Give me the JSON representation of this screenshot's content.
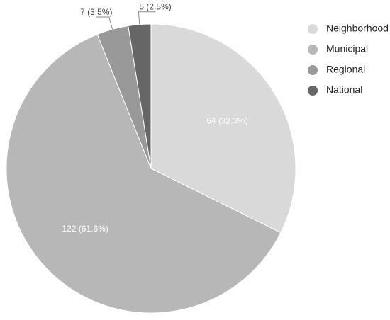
{
  "chart_data": {
    "type": "pie",
    "title": "",
    "legend_position": "right",
    "start_angle": "top, clockwise",
    "slices": [
      {
        "label": "Neighborhood",
        "value": 64,
        "percent": "32.3%",
        "data_label": "64 (32.3%)",
        "color": "#d9d9d9",
        "label_placement": "inside",
        "label_color": "#ffffff"
      },
      {
        "label": "Municipal",
        "value": 122,
        "percent": "61.6%",
        "data_label": "122 (61.6%)",
        "color": "#b7b7b7",
        "label_placement": "inside",
        "label_color": "#ffffff"
      },
      {
        "label": "Regional",
        "value": 7,
        "percent": "3.5%",
        "data_label": "7 (3.5%)",
        "color": "#999999",
        "label_placement": "outside",
        "label_color": "#444444"
      },
      {
        "label": "National",
        "value": 5,
        "percent": "2.5%",
        "data_label": "5 (2.5%)",
        "color": "#666666",
        "label_placement": "outside",
        "label_color": "#444444"
      }
    ]
  }
}
